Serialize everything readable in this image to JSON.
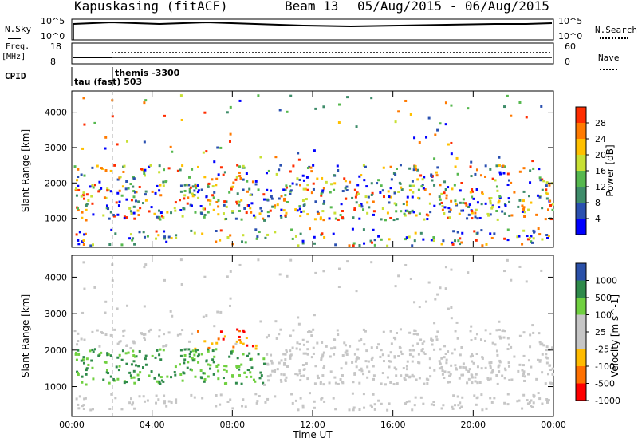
{
  "header": {
    "station": "Kapuskasing (fitACF)",
    "beam": "Beam 13",
    "dates": "05/Aug/2015 - 06/Aug/2015"
  },
  "side_labels": {
    "nsky": "N.Sky",
    "nsearch": "N.Search",
    "freq": "Freq.",
    "mhz": "[MHz]",
    "nave": "Nave",
    "cpid": "CPID",
    "left_top": "10^5",
    "left_bottom": "10^0",
    "right_top": "10^5",
    "right_bottom": "10^0",
    "freq_top": "18",
    "freq_bottom": "8",
    "nave_top": "60",
    "nave_bottom": "0"
  },
  "cpid_labels": {
    "a": "tau (fast) 503",
    "b": "themis -3300"
  },
  "colors": {
    "power_scale": [
      "#0000ff",
      "#2a50b0",
      "#3e8c6a",
      "#56b84e",
      "#c8e034",
      "#ffc000",
      "#ff7a00",
      "#ff2d00"
    ],
    "velocity_scale": [
      "#ff0000",
      "#ff7000",
      "#ffbb00",
      "#c6c6c6",
      "#c6c6c6",
      "#70d040",
      "#2e8a4a",
      "#2a50a8"
    ]
  },
  "chart_data": [
    {
      "type": "heatmap",
      "name": "power",
      "xlabel": "",
      "ylabel": "Slant Range [km]",
      "xlim": [
        0,
        24
      ],
      "ylim": [
        180,
        4600
      ],
      "yticks": [
        "1000",
        "2000",
        "3000",
        "4000"
      ],
      "colorbar_label": "Power [dB]",
      "colorbar_ticks": [
        "4",
        "8",
        "12",
        "16",
        "20",
        "24",
        "28"
      ]
    },
    {
      "type": "heatmap",
      "name": "velocity",
      "xlabel": "Time UT",
      "ylabel": "Slant Range [km]",
      "xlim": [
        0,
        24
      ],
      "ylim": [
        180,
        4600
      ],
      "xticks": [
        "00:00",
        "04:00",
        "08:00",
        "12:00",
        "16:00",
        "20:00",
        "00:00"
      ],
      "yticks": [
        "1000",
        "2000",
        "3000",
        "4000"
      ],
      "colorbar_label": "Velocity [m s^-1]",
      "colorbar_ticks": [
        "1000",
        "500",
        "100",
        "25",
        "-25",
        "-100",
        "-500",
        "-1000"
      ]
    }
  ]
}
